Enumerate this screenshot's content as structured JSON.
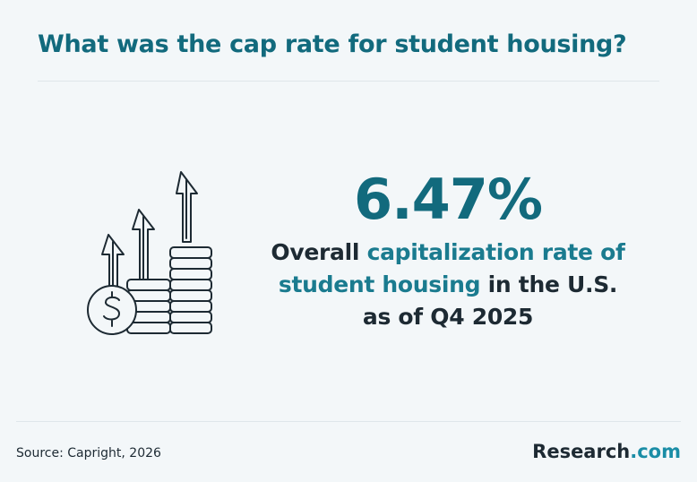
{
  "header": {
    "title": "What was the cap rate for student housing?"
  },
  "stat": {
    "value": "6.47%",
    "desc_line1_a": "Overall ",
    "desc_line1_b": "capitalization rate of",
    "desc_line2_a": "student housing",
    "desc_line2_b": " in the U.S.",
    "desc_line3": "as of Q4 2025"
  },
  "footer": {
    "source": "Source: Capright, 2026",
    "brand_name": "Research",
    "brand_tld": ".com"
  },
  "icons": {
    "illustration": "coins-growth-arrows-icon"
  },
  "colors": {
    "accent": "#126a7d",
    "text": "#1d2a33",
    "background": "#f3f7f9"
  }
}
